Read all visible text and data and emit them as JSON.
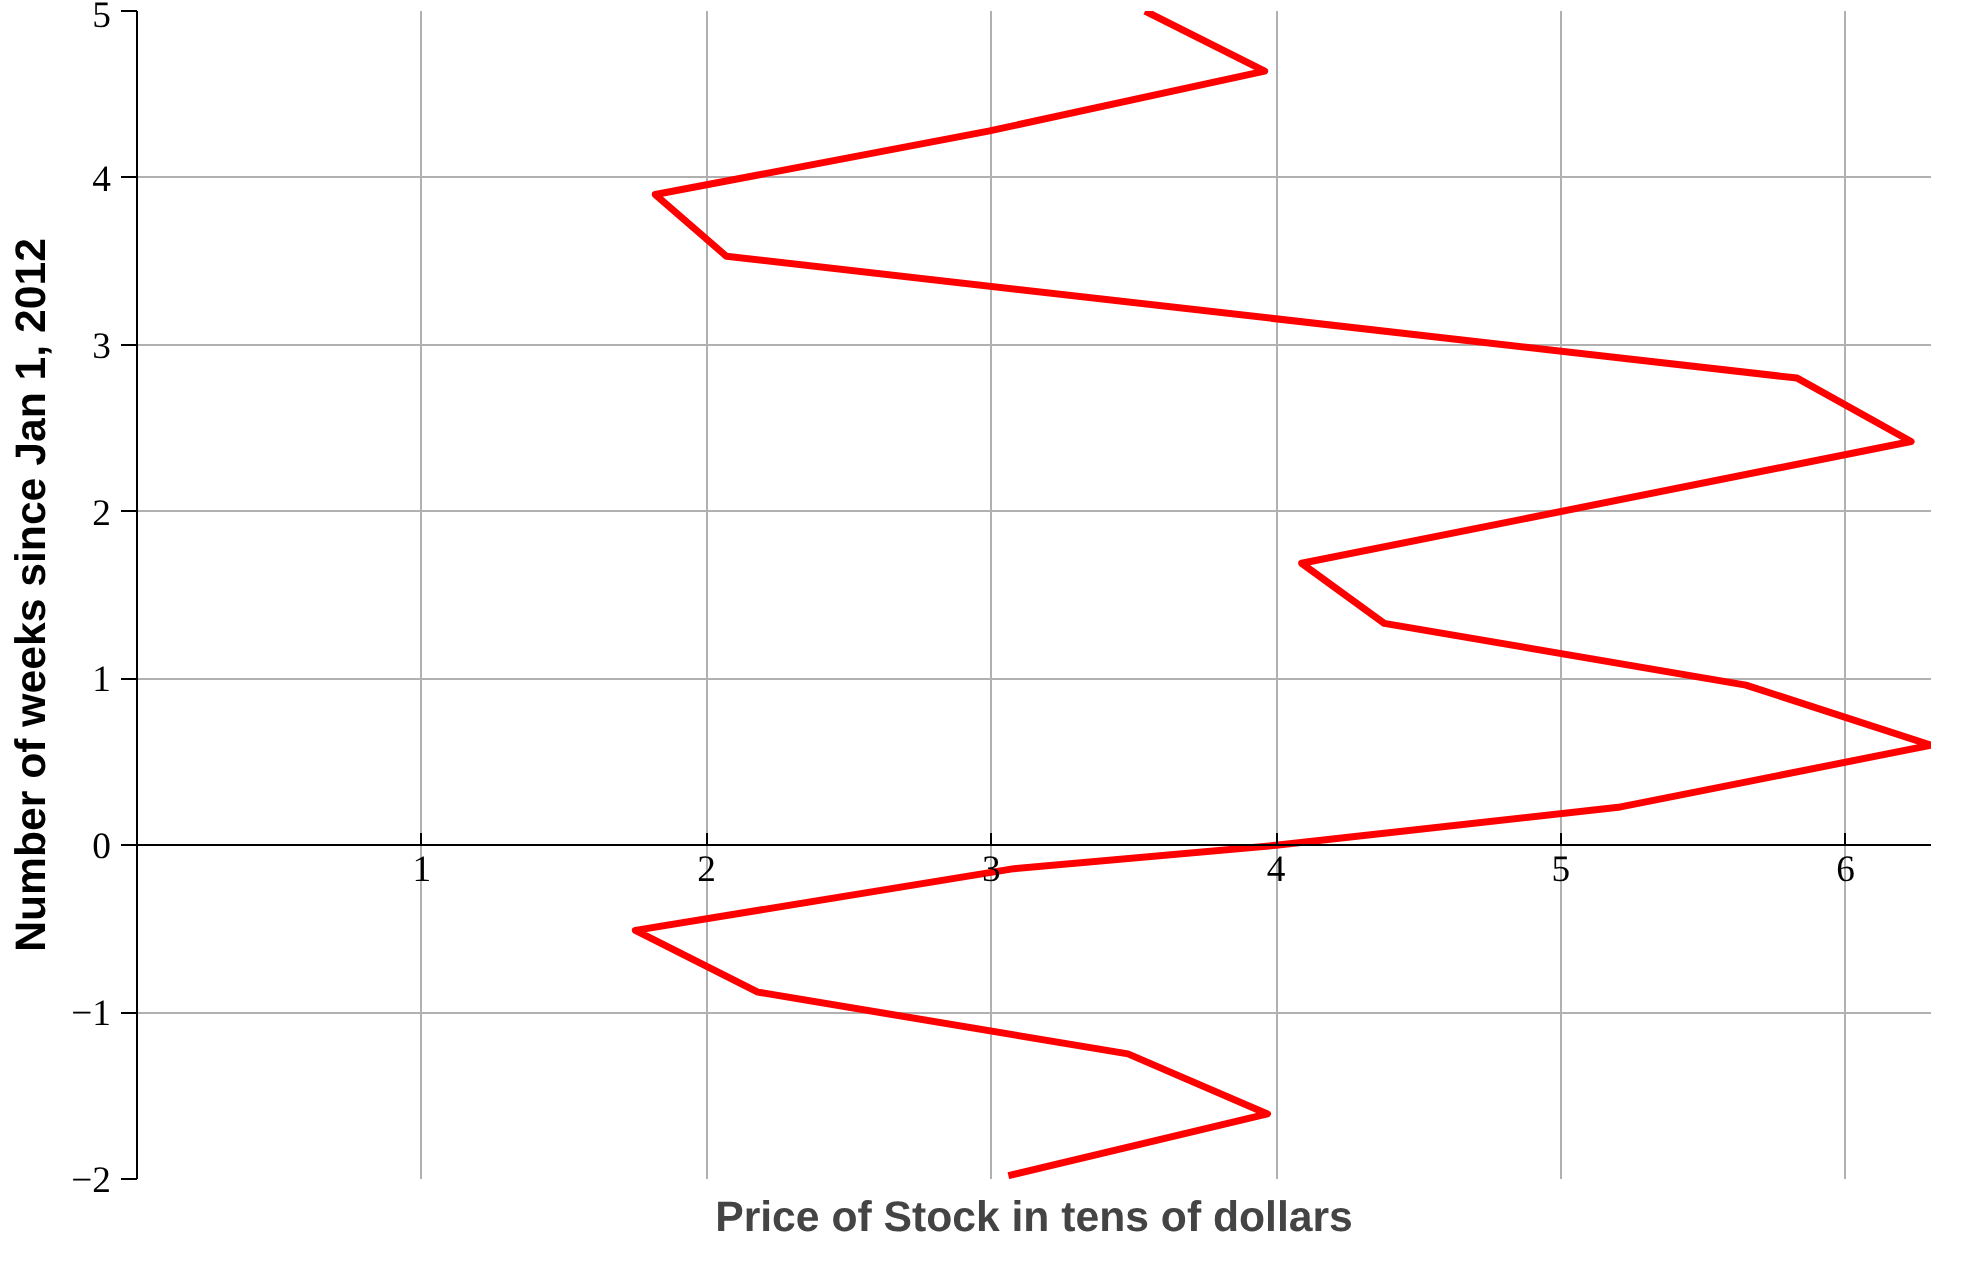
{
  "chart_data": {
    "type": "line",
    "xlabel": "Price of Stock in tens of dollars",
    "ylabel": "Number of weeks since Jan 1, 2012",
    "xlim": [
      0,
      6.3
    ],
    "ylim": [
      -2,
      5
    ],
    "xticks": [
      1,
      2,
      3,
      4,
      5,
      6
    ],
    "yticks": [
      -2,
      -1,
      0,
      1,
      2,
      3,
      4,
      5
    ],
    "grid": true,
    "marker": "none",
    "line_style": "solid",
    "series": [
      {
        "color": "#ff0000",
        "x": [
          3.54,
          3.96,
          2.99,
          1.82,
          2.07,
          5.83,
          6.23,
          4.09,
          4.38,
          5.65,
          6.3,
          5.21,
          4.0,
          3.08,
          1.75,
          2.18,
          3.48,
          3.97,
          3.06
        ],
        "values": [
          5,
          4.64,
          4.28,
          3.9,
          3.53,
          2.8,
          2.42,
          1.69,
          1.33,
          0.96,
          0.6,
          0.23,
          0,
          -0.14,
          -0.51,
          -0.88,
          -1.25,
          -1.61,
          -1.98
        ]
      }
    ]
  }
}
